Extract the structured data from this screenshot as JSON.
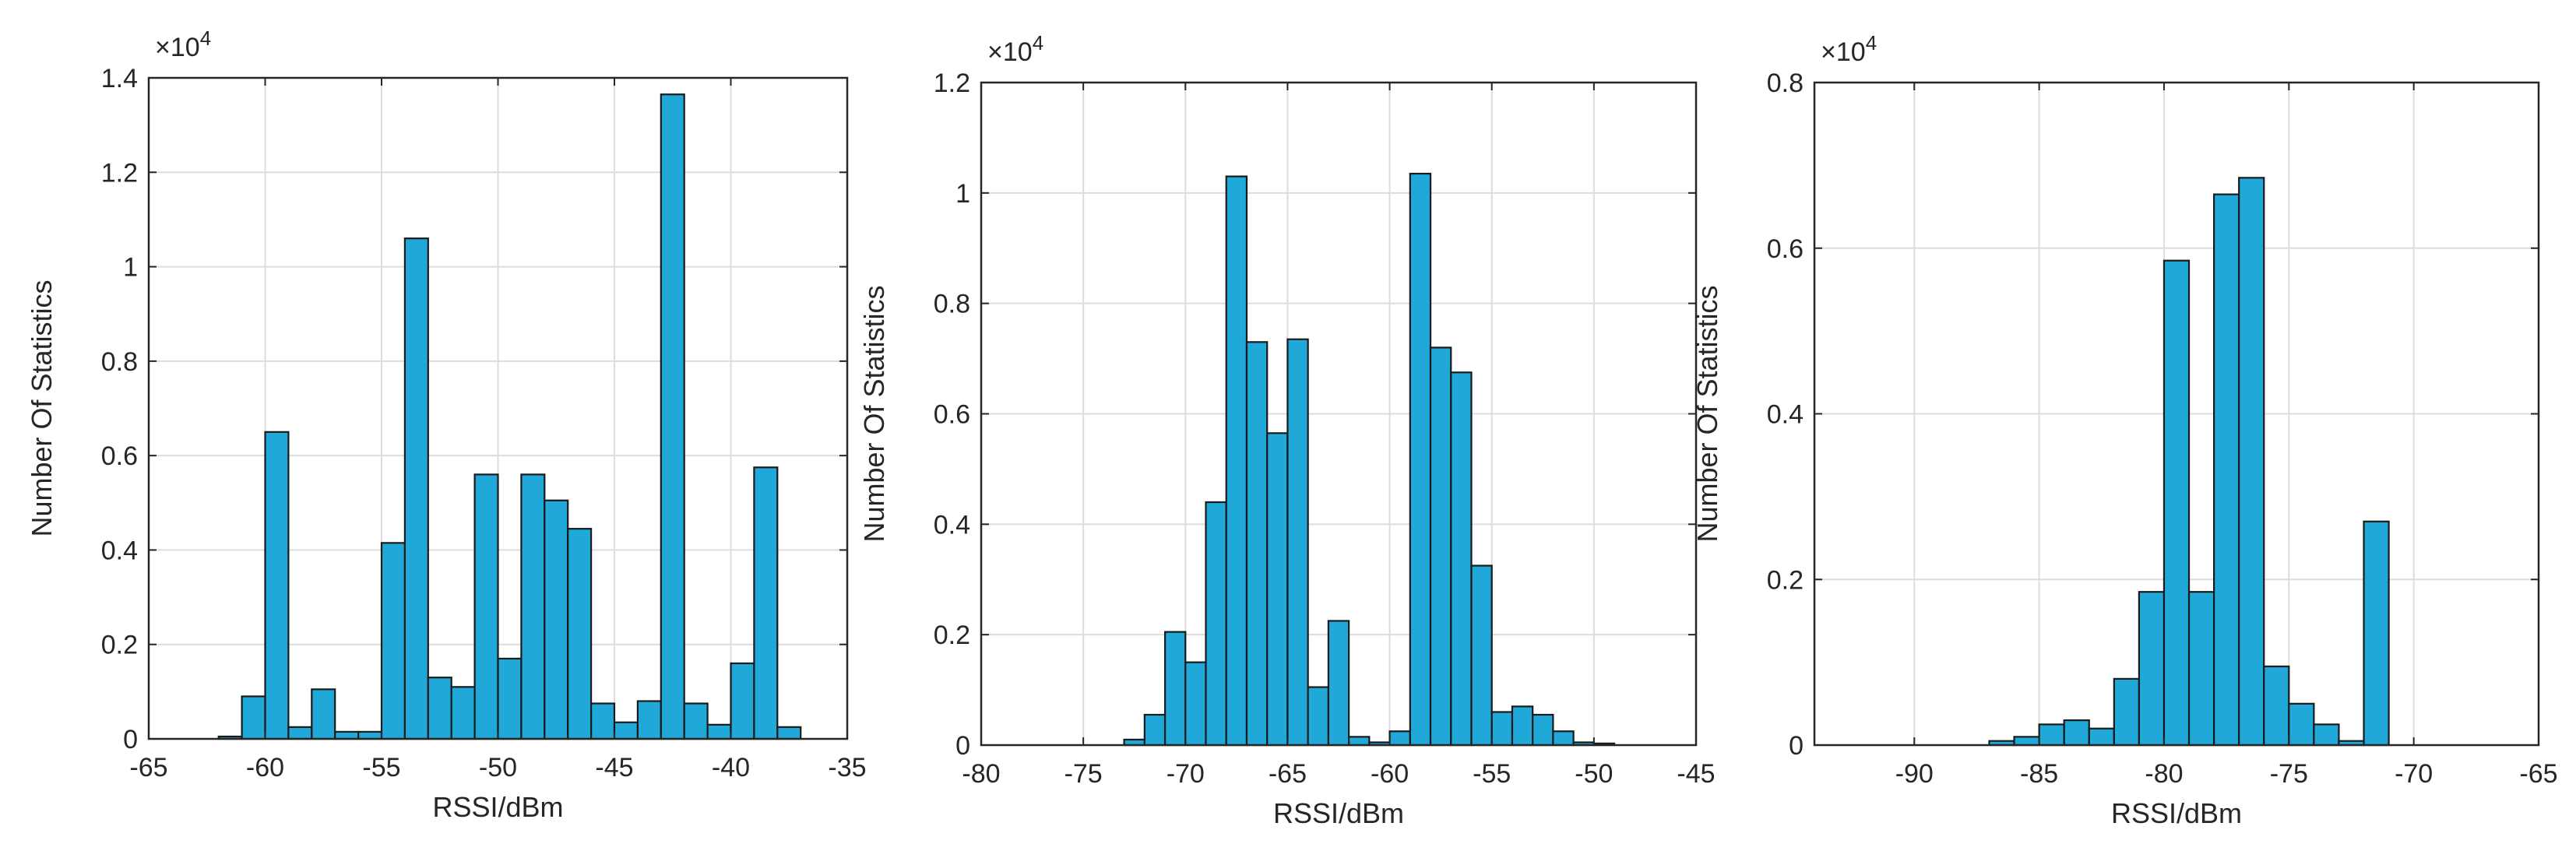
{
  "chart_data": [
    {
      "type": "bar",
      "subtype": "histogram",
      "xlabel": "RSSI/dBm",
      "ylabel": "Number Of Statistics",
      "multiplier_base": "×10",
      "multiplier_exp": "4",
      "xlim": [
        -65,
        -35
      ],
      "ylim": [
        0,
        1.4
      ],
      "xticks": [
        -65,
        -60,
        -55,
        -50,
        -45,
        -40,
        -35
      ],
      "xtick_labels": [
        "-65",
        "-60",
        "-55",
        "-50",
        "-45",
        "-40",
        "-35"
      ],
      "yticks": [
        0,
        0.2,
        0.4,
        0.6,
        0.8,
        1,
        1.2,
        1.4
      ],
      "ytick_labels": [
        "0",
        "0.2",
        "0.4",
        "0.6",
        "0.8",
        "1",
        "1.2",
        "1.4"
      ],
      "grid": true,
      "bar_color": "#1fa8d8",
      "edge_color": "#1a1a1a",
      "bin_width": 1,
      "bin_starts": [
        -62,
        -61,
        -60,
        -59,
        -58,
        -57,
        -56,
        -55,
        -54,
        -53,
        -52,
        -51,
        -50,
        -49,
        -48,
        -47,
        -46,
        -45,
        -44,
        -43,
        -42,
        -41,
        -40,
        -39,
        -38
      ],
      "values": [
        0.005,
        0.09,
        0.65,
        0.025,
        0.105,
        0.015,
        0.015,
        0.415,
        1.06,
        0.13,
        0.11,
        0.56,
        0.17,
        0.56,
        0.505,
        0.445,
        0.075,
        0.035,
        0.08,
        1.365,
        0.075,
        0.03,
        0.16,
        0.575,
        0.025
      ]
    },
    {
      "type": "bar",
      "subtype": "histogram",
      "xlabel": "RSSI/dBm",
      "ylabel": "Number Of Statistics",
      "multiplier_base": "×10",
      "multiplier_exp": "4",
      "xlim": [
        -80,
        -45
      ],
      "ylim": [
        0,
        1.2
      ],
      "xticks": [
        -80,
        -75,
        -70,
        -65,
        -60,
        -55,
        -50,
        -45
      ],
      "xtick_labels": [
        "-80",
        "-75",
        "-70",
        "-65",
        "-60",
        "-55",
        "-50",
        "-45"
      ],
      "yticks": [
        0,
        0.2,
        0.4,
        0.6,
        0.8,
        1,
        1.2
      ],
      "ytick_labels": [
        "0",
        "0.2",
        "0.4",
        "0.6",
        "0.8",
        "1",
        "1.2"
      ],
      "grid": true,
      "bar_color": "#1fa8d8",
      "edge_color": "#1a1a1a",
      "bin_width": 1,
      "bin_starts": [
        -73,
        -72,
        -71,
        -70,
        -69,
        -68,
        -67,
        -66,
        -65,
        -64,
        -63,
        -62,
        -61,
        -60,
        -59,
        -58,
        -57,
        -56,
        -55,
        -54,
        -53,
        -52,
        -51,
        -50
      ],
      "values": [
        0.01,
        0.055,
        0.205,
        0.15,
        0.44,
        1.03,
        0.73,
        0.565,
        0.735,
        0.105,
        0.225,
        0.015,
        0.005,
        0.025,
        1.035,
        0.72,
        0.675,
        0.325,
        0.06,
        0.07,
        0.055,
        0.025,
        0.005,
        0.003
      ]
    },
    {
      "type": "bar",
      "subtype": "histogram",
      "xlabel": "RSSI/dBm",
      "ylabel": "Number Of Statistics",
      "multiplier_base": "×10",
      "multiplier_exp": "4",
      "xlim": [
        -94,
        -65
      ],
      "ylim": [
        0,
        0.8
      ],
      "xticks": [
        -90,
        -85,
        -80,
        -75,
        -70,
        -65
      ],
      "xtick_labels": [
        "-90",
        "-85",
        "-80",
        "-75",
        "-70",
        "-65"
      ],
      "yticks": [
        0,
        0.2,
        0.4,
        0.6,
        0.8
      ],
      "ytick_labels": [
        "0",
        "0.2",
        "0.4",
        "0.6",
        "0.8"
      ],
      "grid": true,
      "bar_color": "#1fa8d8",
      "edge_color": "#1a1a1a",
      "bin_width": 1,
      "bin_starts": [
        -87,
        -86,
        -85,
        -84,
        -83,
        -82,
        -81,
        -80,
        -79,
        -78,
        -77,
        -76,
        -75,
        -74,
        -73,
        -72
      ],
      "values": [
        0.005,
        0.01,
        0.025,
        0.03,
        0.02,
        0.08,
        0.185,
        0.585,
        0.185,
        0.665,
        0.685,
        0.095,
        0.05,
        0.025,
        0.005,
        0.27
      ]
    }
  ]
}
